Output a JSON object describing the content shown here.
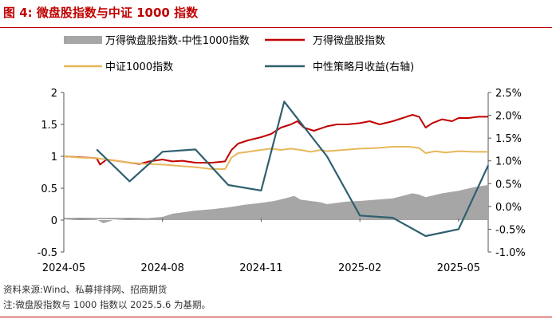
{
  "figure": {
    "title": "图 4:  微盘股指数与中证 1000 指数",
    "source": "资料来源:Wind、私募排排网、招商期货",
    "note": "注:微盘股指数与 1000 指数以 2025.5.6 为基期。"
  },
  "chart_data": {
    "type": "line",
    "title": "微盘股指数与中证 1000 指数",
    "x_tick_labels": [
      "2024-05",
      "2024-08",
      "2024-11",
      "2025-02",
      "2025-05"
    ],
    "x_tick_positions": [
      0,
      3,
      6,
      9,
      12
    ],
    "x_range": [
      0,
      12.9
    ],
    "left_axis": {
      "ylim": [
        -0.5,
        2
      ],
      "ticks": [
        "2",
        "1.5",
        "1",
        "0.5",
        "0",
        "-0.5"
      ],
      "tick_values": [
        2,
        1.5,
        1,
        0.5,
        0,
        -0.5
      ]
    },
    "right_axis": {
      "ylim": [
        -1.0,
        2.5
      ],
      "ticks": [
        "2.5%",
        "2.0%",
        "1.5%",
        "1.0%",
        "0.5%",
        "0.0%",
        "-0.5%",
        "-1.0%"
      ],
      "tick_values": [
        2.5,
        2.0,
        1.5,
        1.0,
        0.5,
        0.0,
        -0.5,
        -1.0
      ]
    },
    "series": [
      {
        "name": "万得微盘股指数-中性1000指数",
        "type": "area",
        "axis": "left",
        "color": "#a6a6a6",
        "x": [
          0,
          0.5,
          1.0,
          1.2,
          1.5,
          2.0,
          2.5,
          3.0,
          3.3,
          3.6,
          4.0,
          4.5,
          5.0,
          5.5,
          6.0,
          6.4,
          6.8,
          7.0,
          7.2,
          7.5,
          7.8,
          8.0,
          8.3,
          8.6,
          9.0,
          9.5,
          10.0,
          10.3,
          10.6,
          10.8,
          11.0,
          11.5,
          12.0,
          12.5,
          12.9
        ],
        "values": [
          0.0,
          0.02,
          0.01,
          -0.05,
          0.0,
          0.02,
          0.03,
          0.05,
          0.1,
          0.12,
          0.15,
          0.17,
          0.2,
          0.24,
          0.27,
          0.3,
          0.35,
          0.38,
          0.32,
          0.3,
          0.28,
          0.25,
          0.27,
          0.29,
          0.3,
          0.32,
          0.34,
          0.38,
          0.42,
          0.4,
          0.36,
          0.42,
          0.46,
          0.52,
          0.55
        ]
      },
      {
        "name": "万得微盘股指数",
        "type": "line",
        "axis": "left",
        "color": "#c00000",
        "x": [
          0,
          0.3,
          0.7,
          1.0,
          1.1,
          1.3,
          1.6,
          2.0,
          2.3,
          2.6,
          3.0,
          3.3,
          3.6,
          4.0,
          4.5,
          4.9,
          5.1,
          5.3,
          5.6,
          6.0,
          6.3,
          6.6,
          6.9,
          7.1,
          7.3,
          7.6,
          8.0,
          8.3,
          8.6,
          9.0,
          9.3,
          9.6,
          10.0,
          10.3,
          10.6,
          10.8,
          11.0,
          11.2,
          11.5,
          11.8,
          12.0,
          12.3,
          12.6,
          12.9
        ],
        "values": [
          1.0,
          0.99,
          0.98,
          0.97,
          0.87,
          0.95,
          0.93,
          0.9,
          0.88,
          0.92,
          0.95,
          0.92,
          0.93,
          0.9,
          0.9,
          0.92,
          1.1,
          1.2,
          1.25,
          1.3,
          1.35,
          1.45,
          1.5,
          1.55,
          1.45,
          1.4,
          1.47,
          1.5,
          1.5,
          1.52,
          1.55,
          1.5,
          1.55,
          1.6,
          1.65,
          1.62,
          1.45,
          1.52,
          1.58,
          1.55,
          1.6,
          1.6,
          1.62,
          1.62
        ]
      },
      {
        "name": "中证1000指数",
        "type": "line",
        "axis": "left",
        "color": "#e6b85c",
        "x": [
          0,
          0.5,
          1.0,
          1.3,
          1.6,
          2.0,
          2.5,
          3.0,
          3.5,
          4.0,
          4.5,
          4.9,
          5.1,
          5.3,
          5.6,
          6.0,
          6.3,
          6.6,
          6.9,
          7.2,
          7.5,
          7.8,
          8.0,
          8.5,
          9.0,
          9.5,
          10.0,
          10.5,
          10.8,
          11.0,
          11.3,
          11.6,
          12.0,
          12.5,
          12.9
        ],
        "values": [
          1.0,
          0.98,
          0.97,
          0.95,
          0.93,
          0.9,
          0.88,
          0.87,
          0.85,
          0.83,
          0.8,
          0.8,
          0.98,
          1.05,
          1.07,
          1.1,
          1.12,
          1.1,
          1.12,
          1.1,
          1.07,
          1.1,
          1.08,
          1.1,
          1.12,
          1.13,
          1.15,
          1.15,
          1.13,
          1.05,
          1.08,
          1.06,
          1.08,
          1.07,
          1.07
        ]
      },
      {
        "name": "中性策略月收益(右轴)",
        "type": "line",
        "axis": "right",
        "color": "#2f5f6e",
        "x": [
          1,
          2,
          3,
          4,
          5,
          6,
          6.7,
          8,
          9,
          10,
          11,
          12,
          12.9
        ],
        "values": [
          1.25,
          0.55,
          1.2,
          1.25,
          0.47,
          0.35,
          2.3,
          1.1,
          -0.2,
          -0.25,
          -0.65,
          -0.5,
          0.9
        ]
      }
    ],
    "legend": {
      "placement": "top",
      "labels": [
        "万得微盘股指数-中性1000指数",
        "万得微盘股指数",
        "中证1000指数",
        "中性策略月收益(右轴)"
      ]
    }
  }
}
